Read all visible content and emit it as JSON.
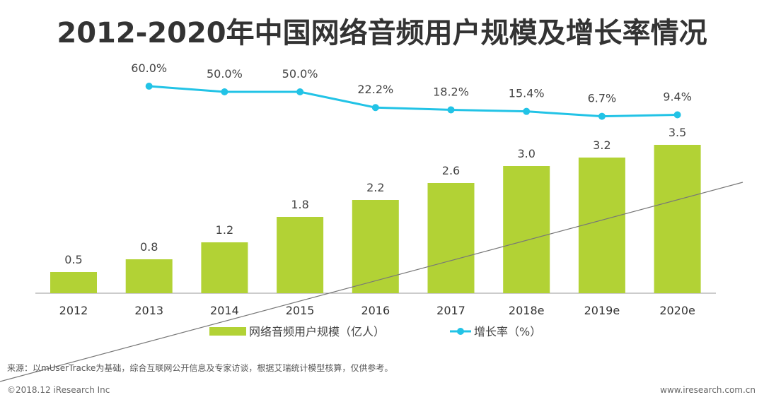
{
  "title": "2012-2020年中国网络音频用户规模及增长率情况",
  "chart_data": {
    "type": "bar+line",
    "categories": [
      "2012",
      "2013",
      "2014",
      "2015",
      "2016",
      "2017",
      "2018e",
      "2019e",
      "2020e"
    ],
    "series": [
      {
        "name": "网络音频用户规模（亿人）",
        "type": "bar",
        "color": "#b2d235",
        "values": [
          0.5,
          0.8,
          1.2,
          1.8,
          2.2,
          2.6,
          3.0,
          3.2,
          3.5
        ],
        "labels": [
          "0.5",
          "0.8",
          "1.2",
          "1.8",
          "2.2",
          "2.6",
          "3.0",
          "3.2",
          "3.5"
        ]
      },
      {
        "name": "增长率（%）",
        "type": "line",
        "color": "#22c3e6",
        "values": [
          null,
          60.0,
          50.0,
          50.0,
          22.2,
          18.2,
          15.4,
          6.7,
          9.4
        ],
        "labels": [
          "",
          "60.0%",
          "50.0%",
          "50.0%",
          "22.2%",
          "18.2%",
          "15.4%",
          "6.7%",
          "9.4%"
        ]
      }
    ],
    "legend": "bottom"
  },
  "footer": {
    "source": "来源：以mUserTracke为基础，综合互联网公开信息及专家访谈，根据艾瑞统计模型核算，仅供参考。",
    "copyright": "©2018.12 iResearch Inc",
    "url": "www.iresearch.com.cn"
  }
}
